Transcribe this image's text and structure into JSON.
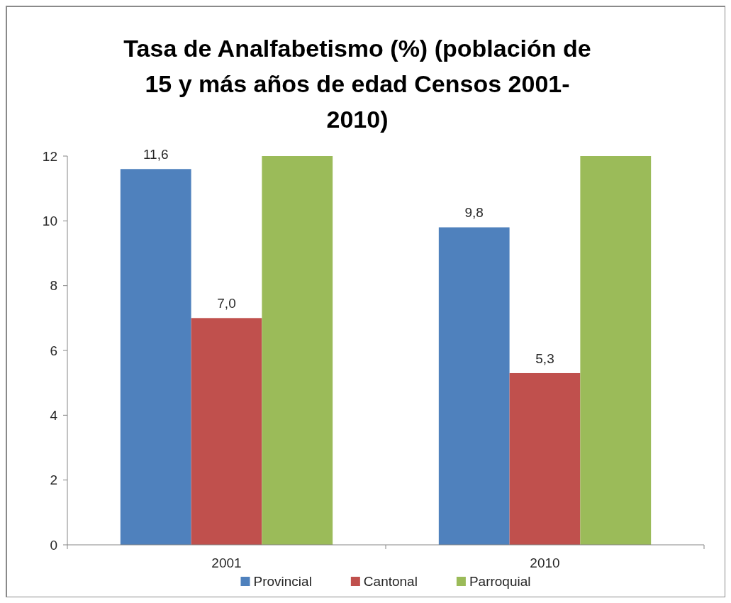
{
  "chart_data": {
    "type": "bar",
    "title": "Tasa de Analfabetismo (%) (población de 15 y más años de edad Censos 2001-2010)",
    "categories": [
      "2001",
      "2010"
    ],
    "series": [
      {
        "name": "Provincial",
        "color": "#4f81bd",
        "values": [
          11.6,
          9.8
        ],
        "value_labels": [
          "11,6",
          "9,8"
        ]
      },
      {
        "name": "Cantonal",
        "color": "#c0504d",
        "values": [
          7.0,
          5.3
        ],
        "value_labels": [
          "7,0",
          "5,3"
        ]
      },
      {
        "name": "Parroquial",
        "color": "#9bbb59",
        "values": [
          12,
          12
        ],
        "value_labels": [
          null,
          null
        ]
      }
    ],
    "ylim": [
      0,
      12
    ],
    "yticks": [
      0,
      2,
      4,
      6,
      8,
      10,
      12
    ],
    "grid": false,
    "legend": "bottom"
  }
}
